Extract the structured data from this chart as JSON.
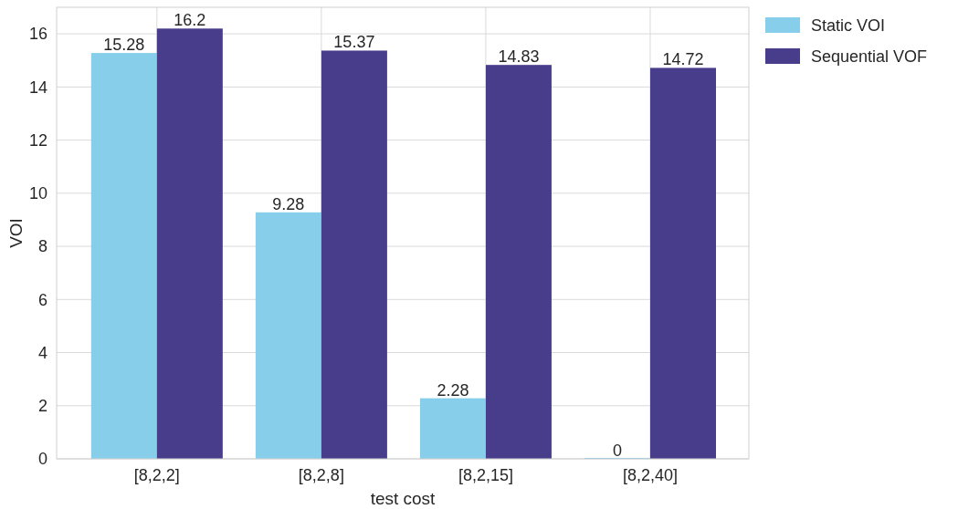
{
  "chart_data": {
    "type": "bar",
    "xlabel": "test cost",
    "ylabel": "VOI",
    "categories": [
      "[8,2,2]",
      "[8,2,8]",
      "[8,2,15]",
      "[8,2,40]"
    ],
    "series": [
      {
        "name": "Static VOI",
        "color": "#87ceeb",
        "values": [
          15.28,
          9.28,
          2.28,
          0
        ]
      },
      {
        "name": "Sequential VOF",
        "color": "#483d8b",
        "values": [
          16.2,
          15.37,
          14.83,
          14.72
        ]
      }
    ],
    "ylim": [
      0,
      17
    ],
    "yticks": [
      0,
      2,
      4,
      6,
      8,
      10,
      12,
      14,
      16
    ],
    "grid": true,
    "legend": "top right",
    "data_labels": true
  }
}
